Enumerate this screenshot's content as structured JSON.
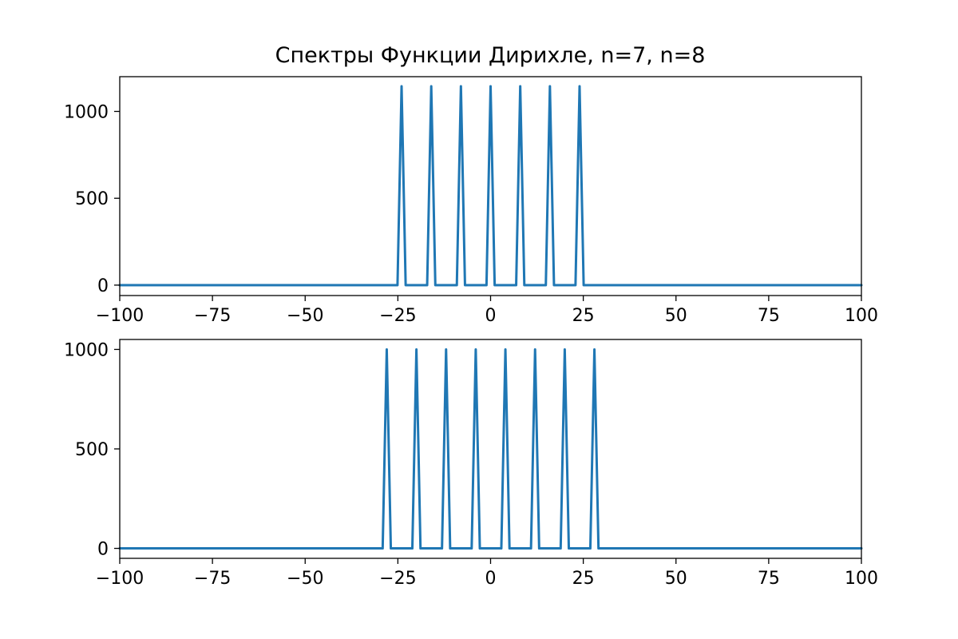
{
  "figure_title": "Спектры Функции Дирихле, n=7, n=8",
  "line_color": "#1f77b4",
  "chart_data": [
    {
      "type": "line",
      "title": "Спектры Функции Дирихле, n=7, n=8",
      "xlabel": "",
      "ylabel": "",
      "xlim": [
        -100,
        100
      ],
      "ylim": [
        -60,
        1200
      ],
      "grid": false,
      "x_ticks": [
        -100,
        -75,
        -50,
        -25,
        0,
        25,
        50,
        75,
        100
      ],
      "x_tick_labels": [
        "−100",
        "−75",
        "−50",
        "−25",
        "0",
        "25",
        "50",
        "75",
        "100"
      ],
      "y_ticks": [
        0,
        500,
        1000
      ],
      "y_tick_labels": [
        "0",
        "500",
        "1000"
      ],
      "baseline": 0,
      "peak_half_width": 1.1,
      "series": [
        {
          "peak_x": [
            -24,
            -16,
            -8,
            0,
            8,
            16,
            24
          ],
          "peak_y": [
            1145,
            1145,
            1145,
            1145,
            1145,
            1145,
            1145
          ]
        }
      ]
    },
    {
      "type": "line",
      "title": "",
      "xlabel": "",
      "ylabel": "",
      "xlim": [
        -100,
        100
      ],
      "ylim": [
        -50,
        1050
      ],
      "grid": false,
      "x_ticks": [
        -100,
        -75,
        -50,
        -25,
        0,
        25,
        50,
        75,
        100
      ],
      "x_tick_labels": [
        "−100",
        "−75",
        "−50",
        "−25",
        "0",
        "25",
        "50",
        "75",
        "100"
      ],
      "y_ticks": [
        0,
        500,
        1000
      ],
      "y_tick_labels": [
        "0",
        "500",
        "1000"
      ],
      "baseline": 0,
      "peak_half_width": 1.1,
      "series": [
        {
          "peak_x": [
            -28,
            -20,
            -12,
            -4,
            4,
            12,
            20,
            28
          ],
          "peak_y": [
            1000,
            1000,
            1000,
            1000,
            1000,
            1000,
            1000,
            1000
          ]
        }
      ]
    }
  ]
}
